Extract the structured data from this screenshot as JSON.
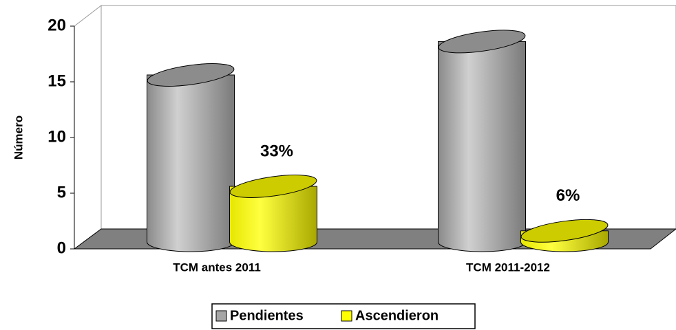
{
  "chart_data": {
    "type": "bar3d",
    "y_label": "Número",
    "categories": [
      "TCM antes 2011",
      "TCM 2011-2012"
    ],
    "series": [
      {
        "name": "Pendientes",
        "color": "#a6a6a6",
        "values": [
          15,
          18
        ]
      },
      {
        "name": "Ascendieron",
        "color": "#ffff00",
        "values": [
          5,
          1
        ]
      }
    ],
    "annotations": [
      "33%",
      "6%"
    ],
    "ylim": [
      0,
      20
    ],
    "yticks": [
      0,
      5,
      10,
      15,
      20
    ],
    "legend": "bottom"
  }
}
